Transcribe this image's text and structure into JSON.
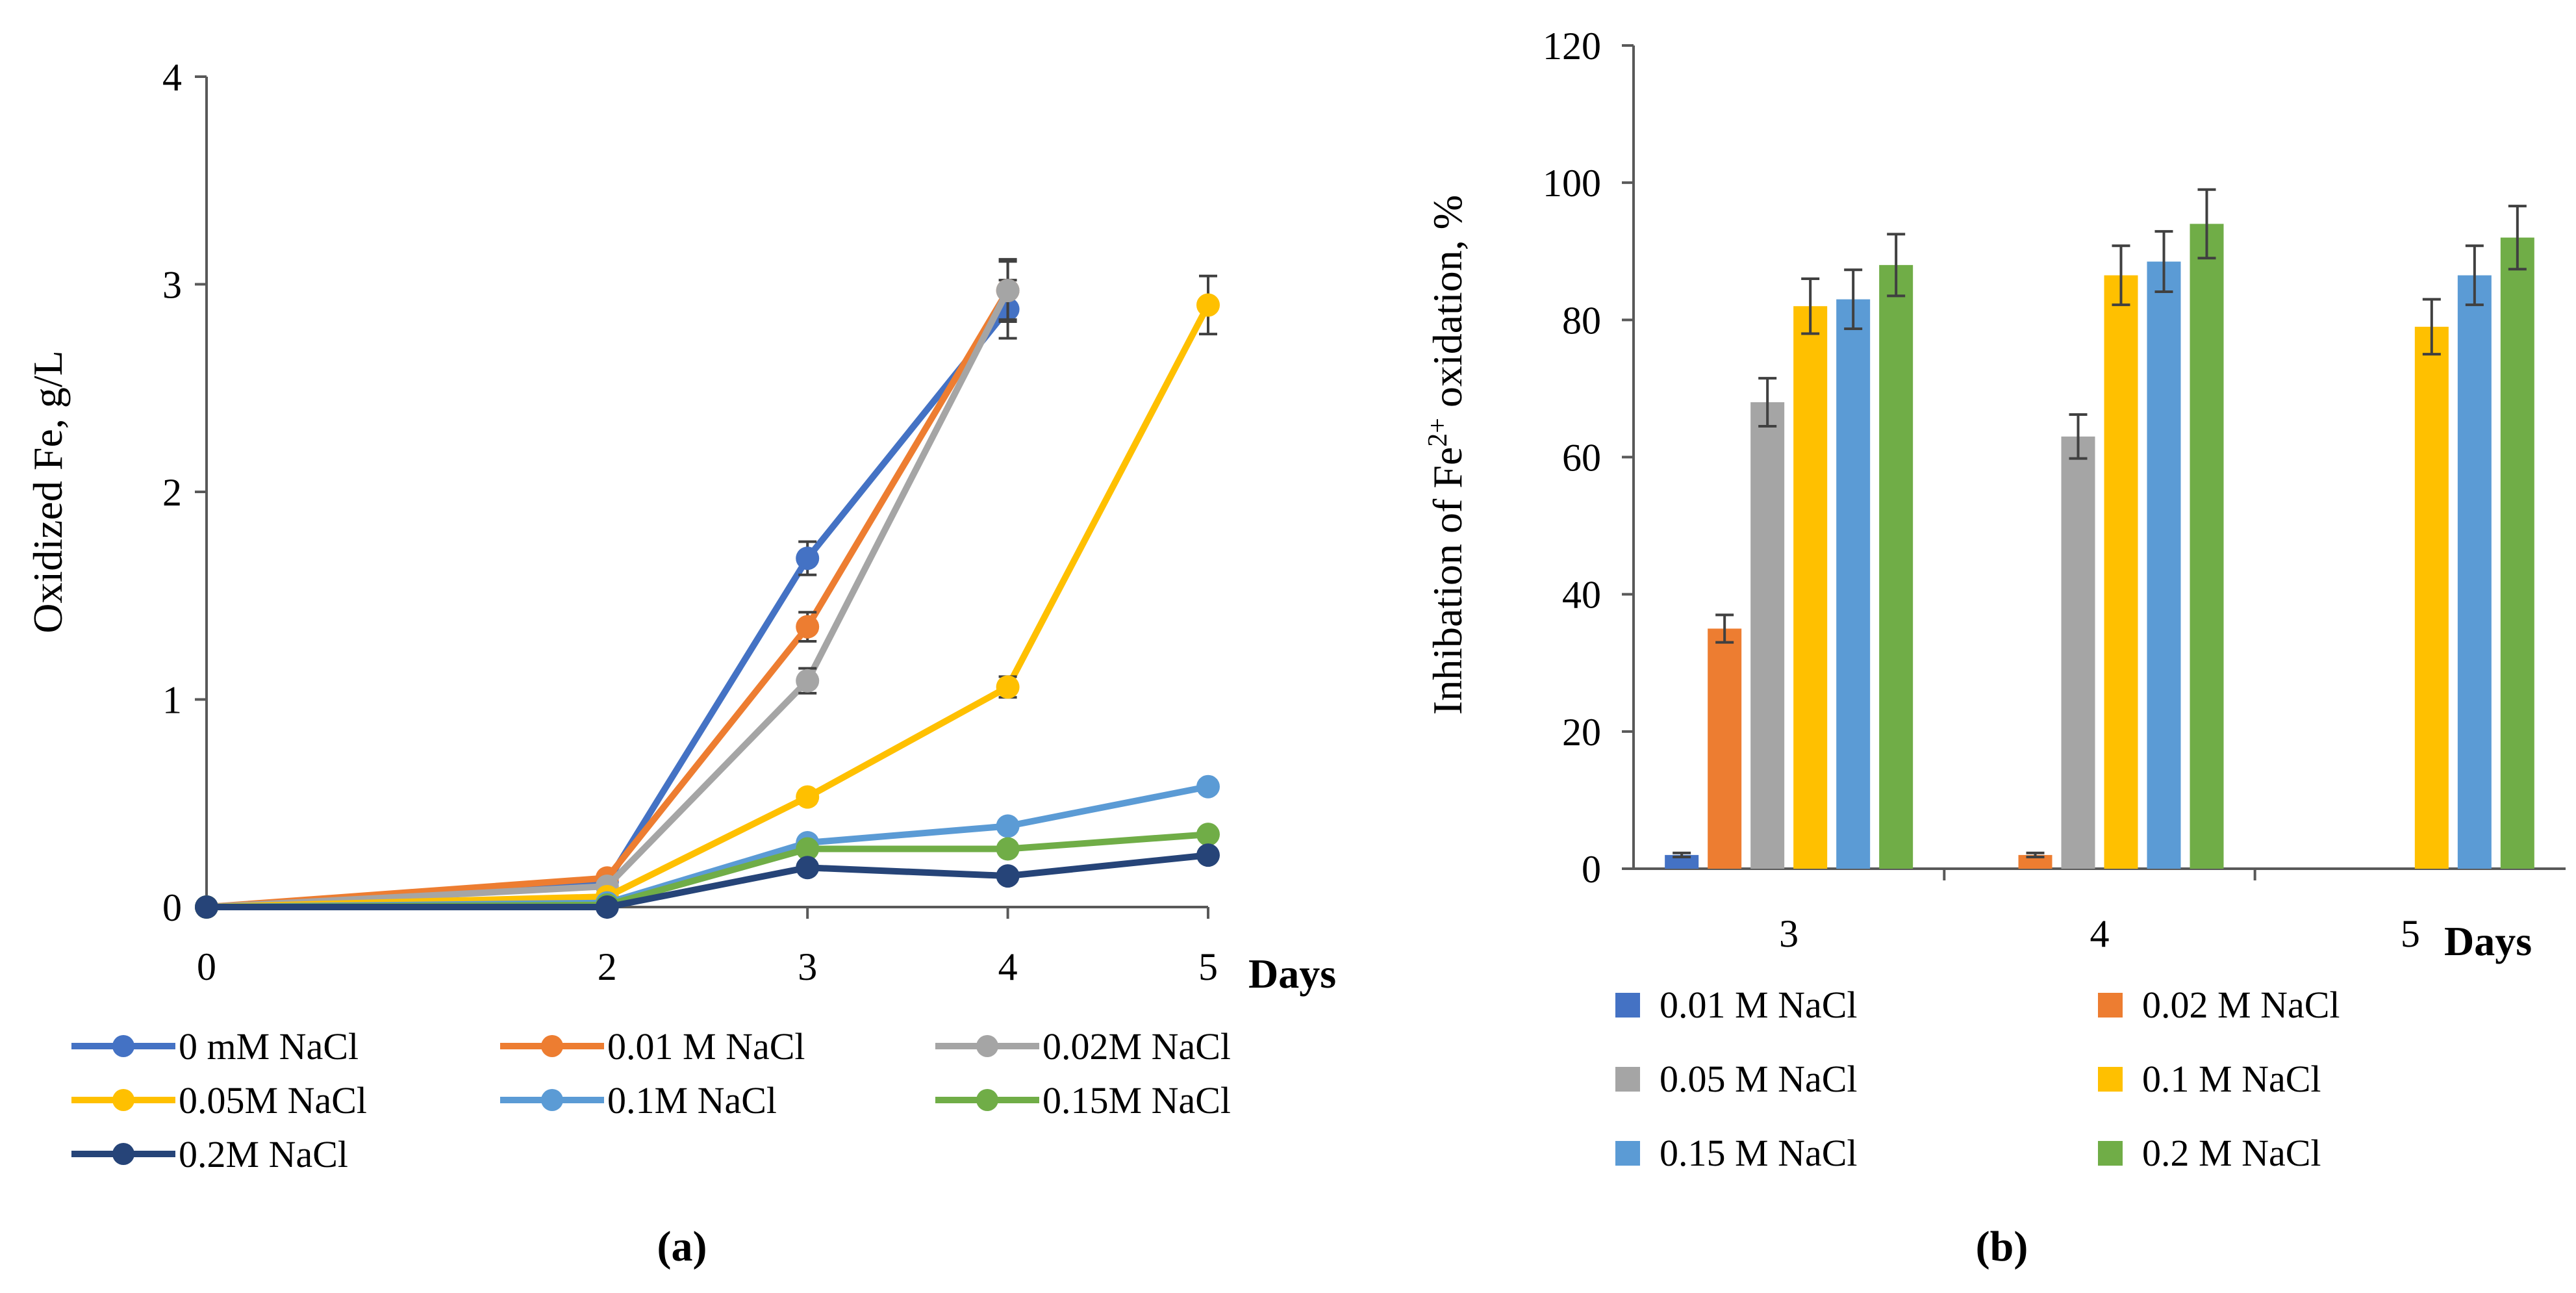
{
  "chart_data": [
    {
      "type": "line",
      "panel_label": "(a)",
      "ylabel": "Oxidized Fe, g/L",
      "xlabel": "Days",
      "x": [
        0,
        2,
        3,
        4,
        5
      ],
      "x_ticks": [
        "0",
        "2",
        "3",
        "4",
        "5"
      ],
      "ylim": [
        0,
        4
      ],
      "y_ticks": [
        "0",
        "1",
        "2",
        "3",
        "4"
      ],
      "series": [
        {
          "name": "0 mM NaCl",
          "color": "#4472C4",
          "values": [
            0,
            0.12,
            1.68,
            2.88,
            null
          ],
          "errors": [
            0,
            0,
            0.08,
            0.14,
            null
          ]
        },
        {
          "name": "0.01 M NaCl",
          "color": "#ED7D31",
          "values": [
            0,
            0.14,
            1.35,
            2.97,
            null
          ],
          "errors": [
            0,
            0,
            0.07,
            0.14,
            null
          ]
        },
        {
          "name": "0.02M NaCl",
          "color": "#A5A5A5",
          "values": [
            0,
            0.1,
            1.09,
            2.97,
            null
          ],
          "errors": [
            0,
            0,
            0.06,
            0.15,
            null
          ]
        },
        {
          "name": "0.05M NaCl",
          "color": "#FFC000",
          "values": [
            0,
            0.05,
            0.53,
            1.06,
            2.9
          ],
          "errors": [
            0,
            0,
            0.03,
            0.05,
            0.14
          ]
        },
        {
          "name": "0.1M NaCl",
          "color": "#5B9BD5",
          "values": [
            0,
            0.02,
            0.31,
            0.39,
            0.58
          ],
          "errors": [
            0,
            0,
            0.02,
            0.02,
            0.03
          ]
        },
        {
          "name": "0.15M NaCl",
          "color": "#70AD47",
          "values": [
            0,
            0.01,
            0.28,
            0.28,
            0.35
          ],
          "errors": [
            0,
            0,
            0.01,
            0.01,
            0.02
          ]
        },
        {
          "name": "0.2M NaCl",
          "color": "#264478",
          "values": [
            0,
            0.0,
            0.19,
            0.15,
            0.25
          ],
          "errors": [
            0,
            0,
            0.01,
            0.01,
            0.01
          ]
        }
      ],
      "legend": "bottom"
    },
    {
      "type": "bar",
      "panel_label": "(b)",
      "ylabel_main": "Inhibation of Fe",
      "ylabel_sup": "2+",
      "ylabel_tail": " oxidation, %",
      "xlabel": "Days",
      "categories": [
        "3",
        "4",
        "5"
      ],
      "ylim": [
        0,
        120
      ],
      "y_ticks": [
        "0",
        "20",
        "40",
        "60",
        "80",
        "100",
        "120"
      ],
      "series": [
        {
          "name": "0.01 M NaCl",
          "color": "#4472C4",
          "values": [
            2,
            null,
            null
          ],
          "errors": [
            0.3,
            null,
            null
          ]
        },
        {
          "name": "0.02 M NaCl",
          "color": "#ED7D31",
          "values": [
            35,
            2,
            null
          ],
          "errors": [
            2,
            0.3,
            null
          ]
        },
        {
          "name": "0.05 M NaCl",
          "color": "#A5A5A5",
          "values": [
            68,
            63,
            null
          ],
          "errors": [
            3.5,
            3.2,
            null
          ]
        },
        {
          "name": "0.1 M NaCl",
          "color": "#FFC000",
          "values": [
            82,
            86.5,
            79
          ],
          "errors": [
            4,
            4.3,
            4
          ]
        },
        {
          "name": "0.15 M NaCl",
          "color": "#5B9BD5",
          "values": [
            83,
            88.5,
            86.5
          ],
          "errors": [
            4.3,
            4.4,
            4.3
          ]
        },
        {
          "name": "0.2 M NaCl",
          "color": "#70AD47",
          "values": [
            88,
            94,
            92
          ],
          "errors": [
            4.5,
            5,
            4.6
          ]
        }
      ],
      "legend": "bottom"
    }
  ]
}
